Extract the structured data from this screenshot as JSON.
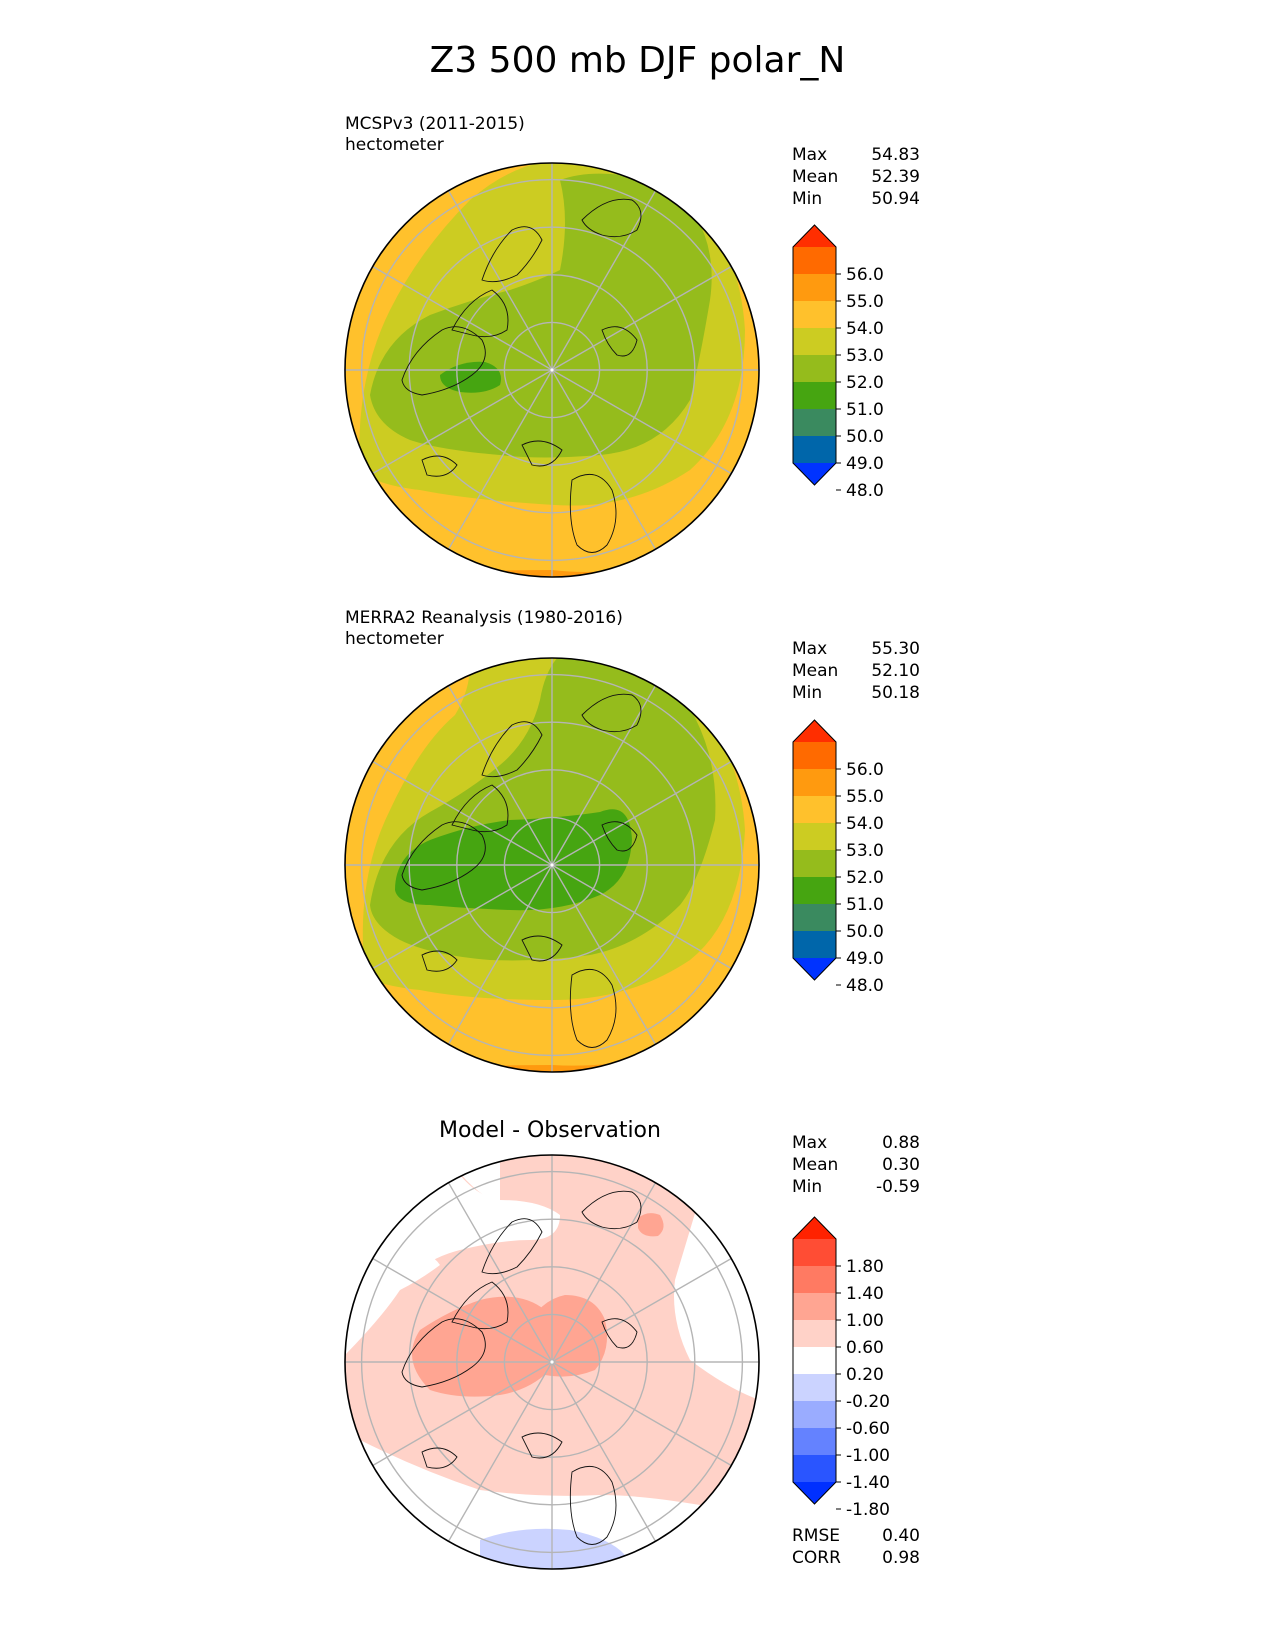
{
  "title": "Z3 500 mb DJF polar_N",
  "panels": [
    {
      "id": "model",
      "label_line1": "MCSPv3 (2011-2015)",
      "label_line2": "hectometer",
      "stats": [
        {
          "label": "Max",
          "value": "54.83"
        },
        {
          "label": "Mean",
          "value": "52.39"
        },
        {
          "label": "Min",
          "value": "50.94"
        }
      ],
      "colorbar": {
        "ticks": [
          "56.0",
          "55.0",
          "54.0",
          "53.0",
          "52.0",
          "51.0",
          "50.0",
          "49.0",
          "48.0"
        ],
        "colors": [
          "#0033ff",
          "#0066aa",
          "#3a8a5f",
          "#46a511",
          "#95bc1c",
          "#cccc22",
          "#ffc12c",
          "#ff9a0f",
          "#ff6a00",
          "#ff2e00"
        ]
      }
    },
    {
      "id": "obs",
      "label_line1": "MERRA2 Reanalysis (1980-2016)",
      "label_line2": "hectometer",
      "stats": [
        {
          "label": "Max",
          "value": "55.30"
        },
        {
          "label": "Mean",
          "value": "52.10"
        },
        {
          "label": "Min",
          "value": "50.18"
        }
      ],
      "colorbar": {
        "ticks": [
          "56.0",
          "55.0",
          "54.0",
          "53.0",
          "52.0",
          "51.0",
          "50.0",
          "49.0",
          "48.0"
        ],
        "colors": [
          "#0033ff",
          "#0066aa",
          "#3a8a5f",
          "#46a511",
          "#95bc1c",
          "#cccc22",
          "#ffc12c",
          "#ff9a0f",
          "#ff6a00",
          "#ff2e00"
        ]
      }
    },
    {
      "id": "diff",
      "title": "Model - Observation",
      "stats": [
        {
          "label": "Max",
          "value": "0.88"
        },
        {
          "label": "Mean",
          "value": "0.30"
        },
        {
          "label": "Min",
          "value": "-0.59"
        }
      ],
      "extra_stats": [
        {
          "label": "RMSE",
          "value": "0.40"
        },
        {
          "label": "CORR",
          "value": "0.98"
        }
      ],
      "colorbar": {
        "ticks": [
          "1.80",
          "1.40",
          "1.00",
          "0.60",
          "0.20",
          "-0.20",
          "-0.60",
          "-1.00",
          "-1.40",
          "-1.80"
        ],
        "colors": [
          "#0030ff",
          "#2a55ff",
          "#6482ff",
          "#9aacff",
          "#cbd3ff",
          "#ffffff",
          "#ffd2c8",
          "#ffa592",
          "#ff7a62",
          "#ff4d34",
          "#ff2200"
        ]
      }
    }
  ],
  "chart_data": [
    {
      "type": "heatmap",
      "title": "MCSPv3 (2011-2015)",
      "units": "hectometer",
      "projection": "north polar stereographic",
      "levels": [
        48,
        49,
        50,
        51,
        52,
        53,
        54,
        55,
        56
      ],
      "extend": "both",
      "max": 54.83,
      "mean": 52.39,
      "min": 50.94
    },
    {
      "type": "heatmap",
      "title": "MERRA2 Reanalysis (1980-2016)",
      "units": "hectometer",
      "projection": "north polar stereographic",
      "levels": [
        48,
        49,
        50,
        51,
        52,
        53,
        54,
        55,
        56
      ],
      "extend": "both",
      "max": 55.3,
      "mean": 52.1,
      "min": 50.18
    },
    {
      "type": "heatmap",
      "title": "Model - Observation",
      "projection": "north polar stereographic",
      "levels": [
        -1.8,
        -1.4,
        -1.0,
        -0.6,
        -0.2,
        0.2,
        0.6,
        1.0,
        1.4,
        1.8
      ],
      "extend": "both",
      "max": 0.88,
      "mean": 0.3,
      "min": -0.59,
      "rmse": 0.4,
      "corr": 0.98
    }
  ]
}
